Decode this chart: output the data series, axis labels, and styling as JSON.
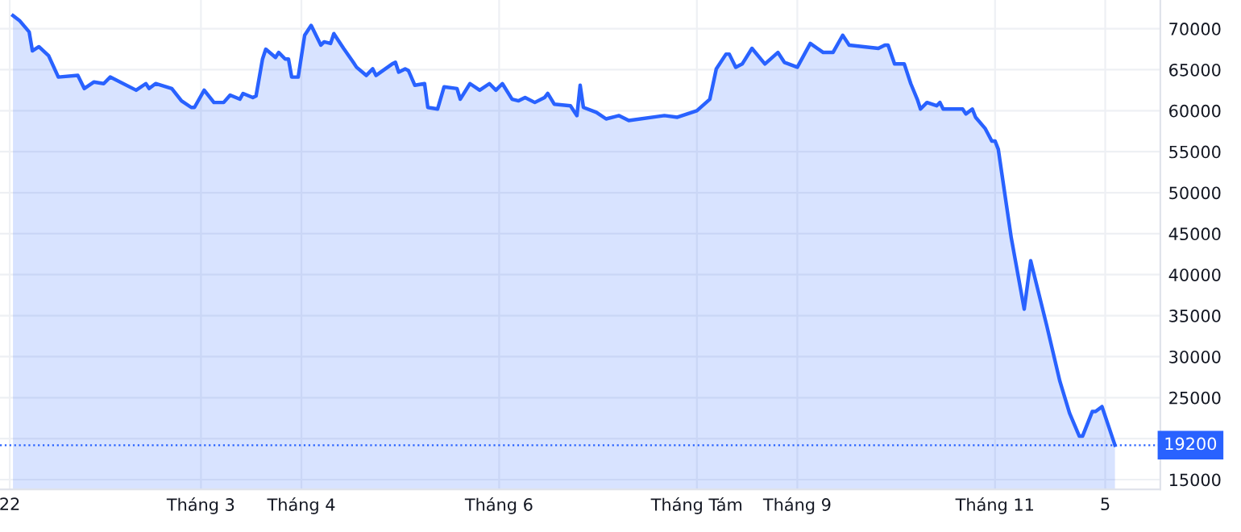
{
  "chart_data": {
    "type": "area",
    "x": [
      "2022-01-02",
      "2022-01-04",
      "2022-01-07",
      "2022-01-08",
      "2022-01-10",
      "2022-01-13",
      "2022-01-16",
      "2022-01-22",
      "2022-01-24",
      "2022-01-27",
      "2022-01-30",
      "2022-02-01",
      "2022-02-09",
      "2022-02-12",
      "2022-02-13",
      "2022-02-15",
      "2022-02-20",
      "2022-02-23",
      "2022-02-26",
      "2022-02-27",
      "2022-03-02",
      "2022-03-05",
      "2022-03-08",
      "2022-03-10",
      "2022-03-13",
      "2022-03-14",
      "2022-03-17",
      "2022-03-18",
      "2022-03-20",
      "2022-03-21",
      "2022-03-24",
      "2022-03-25",
      "2022-03-27",
      "2022-03-28",
      "2022-03-29",
      "2022-03-31",
      "2022-04-02",
      "2022-04-04",
      "2022-04-07",
      "2022-04-08",
      "2022-04-10",
      "2022-04-11",
      "2022-04-14",
      "2022-04-17",
      "2022-04-18",
      "2022-04-21",
      "2022-04-23",
      "2022-04-24",
      "2022-04-29",
      "2022-04-30",
      "2022-05-01",
      "2022-05-03",
      "2022-05-04",
      "2022-05-06",
      "2022-05-09",
      "2022-05-10",
      "2022-05-13",
      "2022-05-15",
      "2022-05-19",
      "2022-05-20",
      "2022-05-23",
      "2022-05-26",
      "2022-05-29",
      "2022-05-31",
      "2022-06-02",
      "2022-06-05",
      "2022-06-07",
      "2022-06-09",
      "2022-06-12",
      "2022-06-15",
      "2022-06-16",
      "2022-06-18",
      "2022-06-23",
      "2022-06-25",
      "2022-06-26",
      "2022-06-27",
      "2022-07-01",
      "2022-07-04",
      "2022-07-08",
      "2022-07-11",
      "2022-07-22",
      "2022-07-26",
      "2022-08-01",
      "2022-08-05",
      "2022-08-07",
      "2022-08-10",
      "2022-08-11",
      "2022-08-13",
      "2022-08-15",
      "2022-08-18",
      "2022-08-22",
      "2022-08-26",
      "2022-08-28",
      "2022-09-01",
      "2022-09-05",
      "2022-09-09",
      "2022-09-12",
      "2022-09-15",
      "2022-09-17",
      "2022-09-26",
      "2022-09-28",
      "2022-09-29",
      "2022-10-01",
      "2022-10-04",
      "2022-10-06",
      "2022-10-08",
      "2022-10-09",
      "2022-10-11",
      "2022-10-14",
      "2022-10-15",
      "2022-10-16",
      "2022-10-22",
      "2022-10-23",
      "2022-10-25",
      "2022-10-26",
      "2022-10-29",
      "2022-10-31",
      "2022-11-01",
      "2022-11-02",
      "2022-11-06",
      "2022-11-10",
      "2022-11-12",
      "2022-11-17",
      "2022-11-21",
      "2022-11-24",
      "2022-11-27",
      "2022-11-28",
      "2022-12-01",
      "2022-12-02",
      "2022-12-04",
      "2022-12-08"
    ],
    "series": [
      {
        "color": "#2962ff",
        "values": [
          71600,
          71000,
          69600,
          67300,
          67800,
          66700,
          64100,
          64300,
          62700,
          63500,
          63300,
          64100,
          62500,
          63300,
          62700,
          63300,
          62700,
          61200,
          60400,
          60400,
          62500,
          61000,
          61000,
          61900,
          61400,
          62100,
          61600,
          61800,
          66300,
          67500,
          66500,
          67100,
          66300,
          66300,
          64100,
          64100,
          69200,
          70400,
          68000,
          68400,
          68200,
          69400,
          67600,
          65900,
          65300,
          64300,
          65100,
          64300,
          65700,
          65900,
          64700,
          65100,
          64900,
          63100,
          63300,
          60400,
          60200,
          62900,
          62700,
          61400,
          63300,
          62500,
          63300,
          62500,
          63300,
          61400,
          61200,
          61600,
          61000,
          61600,
          62100,
          60800,
          60600,
          59400,
          63100,
          60400,
          59800,
          59000,
          59400,
          58800,
          59400,
          59200,
          60000,
          61400,
          65100,
          66900,
          66900,
          65300,
          65700,
          67600,
          65700,
          67100,
          65900,
          65300,
          68200,
          67100,
          67100,
          69200,
          68000,
          67600,
          68000,
          68000,
          65700,
          65700,
          63300,
          61400,
          60200,
          61000,
          60600,
          61000,
          60200,
          60200,
          59600,
          60200,
          59200,
          57800,
          56300,
          56300,
          55300,
          44500,
          35800,
          41700,
          33700,
          27000,
          23100,
          20300,
          20300,
          23300,
          23300,
          23900,
          19200
        ]
      }
    ],
    "xlim": [
      "2021-12-29",
      "2022-12-22"
    ],
    "xticks": [
      {
        "value": "2022-01-01",
        "label": "22"
      },
      {
        "value": "2022-03-01",
        "label": "Tháng 3"
      },
      {
        "value": "2022-04-01",
        "label": "Tháng 4"
      },
      {
        "value": "2022-06-01",
        "label": "Tháng 6"
      },
      {
        "value": "2022-08-01",
        "label": "Tháng Tám"
      },
      {
        "value": "2022-09-01",
        "label": "Tháng 9"
      },
      {
        "value": "2022-11-01",
        "label": "Tháng 11"
      },
      {
        "value": "2022-12-05",
        "label": "5"
      }
    ],
    "ylim": [
      13800,
      73500
    ],
    "yticks": [
      15000,
      {
        "value": 20000,
        "label": null
      },
      25000,
      30000,
      35000,
      40000,
      45000,
      50000,
      55000,
      60000,
      65000,
      70000
    ],
    "ref_lines": [
      {
        "axis": "y",
        "value": 19200,
        "label": "19200",
        "color": "#2962ff",
        "line_style": "dotted"
      }
    ],
    "grid": true,
    "legend": false
  }
}
